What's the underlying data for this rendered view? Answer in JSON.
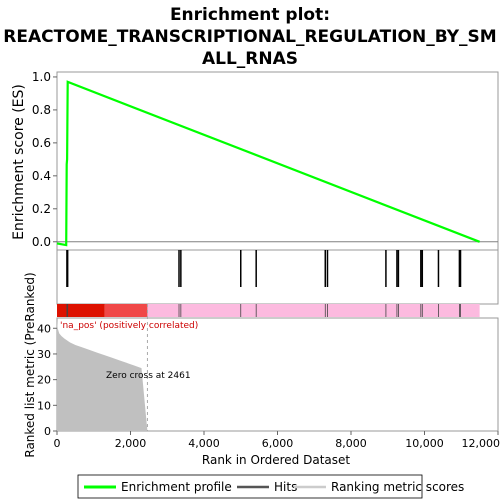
{
  "chart_data": {
    "type": "line",
    "title": "Enrichment plot: REACTOME_TRANSCRIPTIONAL_REGULATION_BY_SMALL_RNAS",
    "title_lines": [
      "Enrichment plot:",
      "REACTOME_TRANSCRIPTIONAL_REGULATION_BY_SM",
      "ALL_RNAS"
    ],
    "es_panel": {
      "ylabel": "Enrichment score (ES)",
      "ylim": [
        -0.05,
        1.03
      ],
      "yticks": [
        0.0,
        0.2,
        0.4,
        0.6,
        0.8,
        1.0
      ],
      "ytick_labels": [
        "0.0",
        "0.2",
        "0.4",
        "0.6",
        "0.8",
        "1.0"
      ],
      "series": [
        {
          "name": "Enrichment profile",
          "color": "#00ff00",
          "x": [
            0,
            250,
            265,
            275,
            290,
            11500
          ],
          "y": [
            -0.01,
            -0.02,
            0.47,
            0.5,
            0.97,
            0.0
          ]
        }
      ]
    },
    "hits": {
      "name": "Hits",
      "x": [
        270,
        290,
        3320,
        3370,
        5000,
        5420,
        7300,
        7360,
        8950,
        9250,
        9290,
        9900,
        9940,
        10380,
        10950,
        10980
      ]
    },
    "heatmap_bar": {
      "segments": [
        {
          "from": 0,
          "to": 1300,
          "color": "#dd1100"
        },
        {
          "from": 1300,
          "to": 2461,
          "color": "#f04848"
        },
        {
          "from": 2461,
          "to": 11500,
          "color": "#fcbadf"
        }
      ],
      "label": "'na_pos' (positively correlated)",
      "label_color": "#cc0000"
    },
    "ranked_panel": {
      "ylabel": "Ranked list metric (PreRanked)",
      "xlabel": "Rank in Ordered Dataset",
      "xlim": [
        0,
        12000
      ],
      "ylim": [
        0,
        44
      ],
      "xticks": [
        0,
        2000,
        4000,
        6000,
        8000,
        10000,
        12000
      ],
      "xtick_labels": [
        "0",
        "2,000",
        "4,000",
        "6,000",
        "8,000",
        "10,000",
        "12,000"
      ],
      "yticks": [
        0,
        10,
        20,
        30,
        40
      ],
      "ytick_labels": [
        "0",
        "10",
        "20",
        "30",
        "40"
      ],
      "area_color": "#c0c0c0",
      "metric": {
        "x": [
          0,
          20,
          60,
          120,
          200,
          350,
          500,
          700,
          900,
          1100,
          1300,
          1500,
          1700,
          1900,
          2100,
          2300,
          2461
        ],
        "y": [
          43,
          40,
          38,
          37,
          36,
          34.5,
          33.5,
          32.5,
          31.5,
          30.5,
          29.5,
          28.5,
          27.5,
          26.5,
          25.5,
          24.5,
          0
        ]
      },
      "zero_cross_label": "Zero cross at 2461",
      "zero_cross": 2461
    },
    "legend": {
      "items": [
        {
          "label": "Enrichment profile",
          "color": "#00ff00"
        },
        {
          "label": "Hits",
          "color": "#555555"
        },
        {
          "label": "Ranking metric scores",
          "color": "#cccccc"
        }
      ]
    },
    "colors": {
      "profile": "#00ff00",
      "hit": "#000000",
      "frame": "#999999"
    }
  }
}
